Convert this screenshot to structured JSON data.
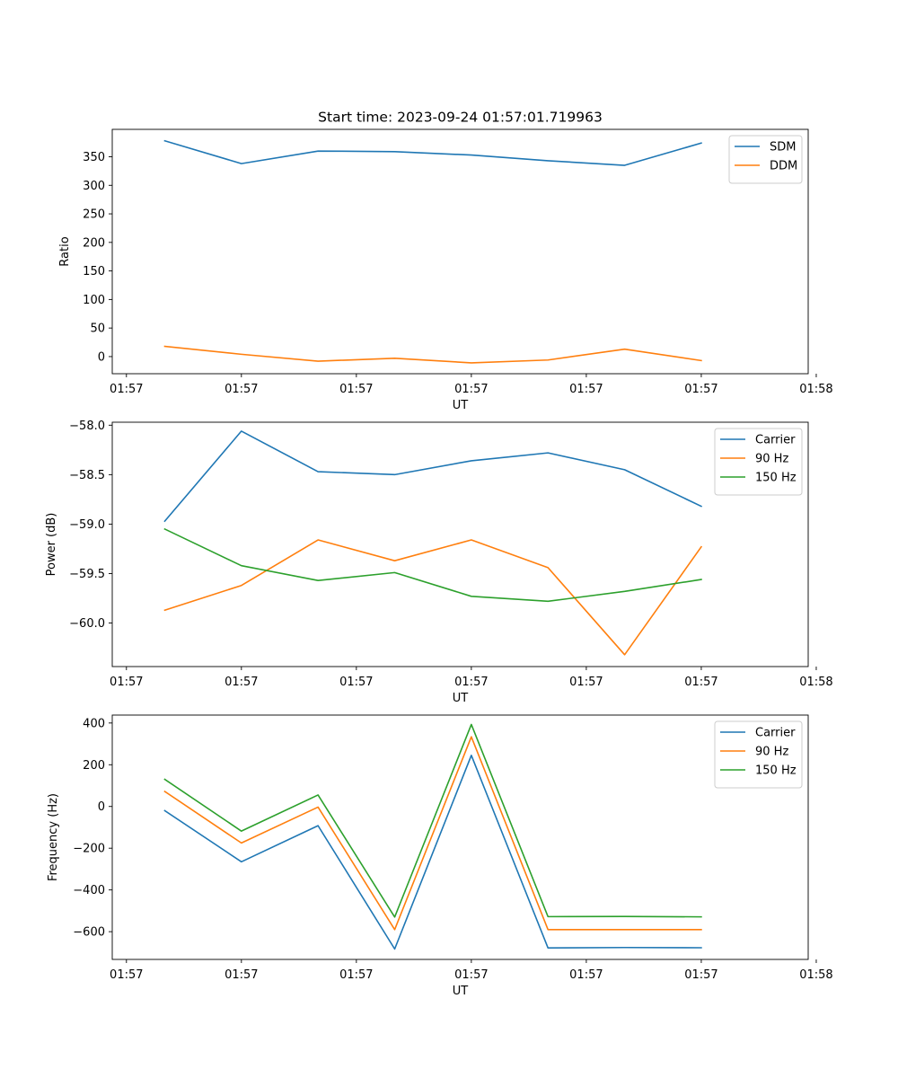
{
  "figure": {
    "title": "Start time: 2023-09-24 01:57:01.719963"
  },
  "chart_data": [
    {
      "type": "line",
      "title": "Start time: 2023-09-24 01:57:01.719963",
      "xlabel": "UT",
      "ylabel": "Ratio",
      "x": [
        1,
        2,
        3,
        4,
        5,
        6,
        7,
        8
      ],
      "xlim": [
        0.315,
        9.395
      ],
      "ylim": [
        -30,
        398
      ],
      "x_ticks": [
        0.5,
        2.0,
        3.5,
        5.0,
        6.5,
        8.0,
        9.5
      ],
      "x_tick_labels": [
        "01:57",
        "01:57",
        "01:57",
        "01:57",
        "01:57",
        "01:57",
        "01:58"
      ],
      "y_ticks": [
        0,
        50,
        100,
        150,
        200,
        250,
        300,
        350
      ],
      "legend_position": "top-right",
      "series": [
        {
          "name": "SDM",
          "color": "#1f77b4",
          "values": [
            378,
            338,
            360,
            359,
            353,
            343,
            335,
            374
          ]
        },
        {
          "name": "DDM",
          "color": "#ff7f0e",
          "values": [
            18,
            4,
            -8,
            -3,
            -11,
            -6,
            13,
            -7
          ]
        }
      ]
    },
    {
      "type": "line",
      "xlabel": "UT",
      "ylabel": "Power (dB)",
      "x": [
        1,
        2,
        3,
        4,
        5,
        6,
        7,
        8
      ],
      "xlim": [
        0.315,
        9.395
      ],
      "ylim": [
        -60.44,
        -57.97
      ],
      "x_ticks": [
        0.5,
        2.0,
        3.5,
        5.0,
        6.5,
        8.0,
        9.5
      ],
      "x_tick_labels": [
        "01:57",
        "01:57",
        "01:57",
        "01:57",
        "01:57",
        "01:57",
        "01:58"
      ],
      "y_ticks": [
        -58.0,
        -58.5,
        -59.0,
        -59.5,
        -60.0
      ],
      "y_tick_labels": [
        "−58.0",
        "−58.5",
        "−59.0",
        "−59.5",
        "−60.0"
      ],
      "legend_position": "top-right",
      "series": [
        {
          "name": "Carrier",
          "color": "#1f77b4",
          "values": [
            -58.97,
            -58.06,
            -58.47,
            -58.5,
            -58.36,
            -58.28,
            -58.45,
            -58.82
          ]
        },
        {
          "name": "90 Hz",
          "color": "#ff7f0e",
          "values": [
            -59.87,
            -59.62,
            -59.16,
            -59.37,
            -59.16,
            -59.44,
            -60.32,
            -59.23
          ]
        },
        {
          "name": "150 Hz",
          "color": "#2ca02c",
          "values": [
            -59.05,
            -59.42,
            -59.57,
            -59.49,
            -59.73,
            -59.78,
            -59.68,
            -59.56
          ]
        }
      ]
    },
    {
      "type": "line",
      "xlabel": "UT",
      "ylabel": "Frequency (Hz)",
      "x": [
        1,
        2,
        3,
        4,
        5,
        6,
        7,
        8
      ],
      "xlim": [
        0.315,
        9.395
      ],
      "ylim": [
        -733,
        438
      ],
      "x_ticks": [
        0.5,
        2.0,
        3.5,
        5.0,
        6.5,
        8.0,
        9.5
      ],
      "x_tick_labels": [
        "01:57",
        "01:57",
        "01:57",
        "01:57",
        "01:57",
        "01:57",
        "01:58"
      ],
      "y_ticks": [
        400,
        200,
        0,
        -200,
        -400,
        -600
      ],
      "y_tick_labels": [
        "400",
        "200",
        "0",
        "−200",
        "−400",
        "−600"
      ],
      "legend_position": "top-right",
      "series": [
        {
          "name": "Carrier",
          "color": "#1f77b4",
          "values": [
            -20,
            -265,
            -92,
            -683,
            245,
            -678,
            -676,
            -677
          ]
        },
        {
          "name": "90 Hz",
          "color": "#ff7f0e",
          "values": [
            72,
            -175,
            -3,
            -590,
            334,
            -590,
            -590,
            -590
          ]
        },
        {
          "name": "150 Hz",
          "color": "#2ca02c",
          "values": [
            130,
            -118,
            55,
            -530,
            393,
            -528,
            -527,
            -529
          ]
        }
      ]
    }
  ]
}
